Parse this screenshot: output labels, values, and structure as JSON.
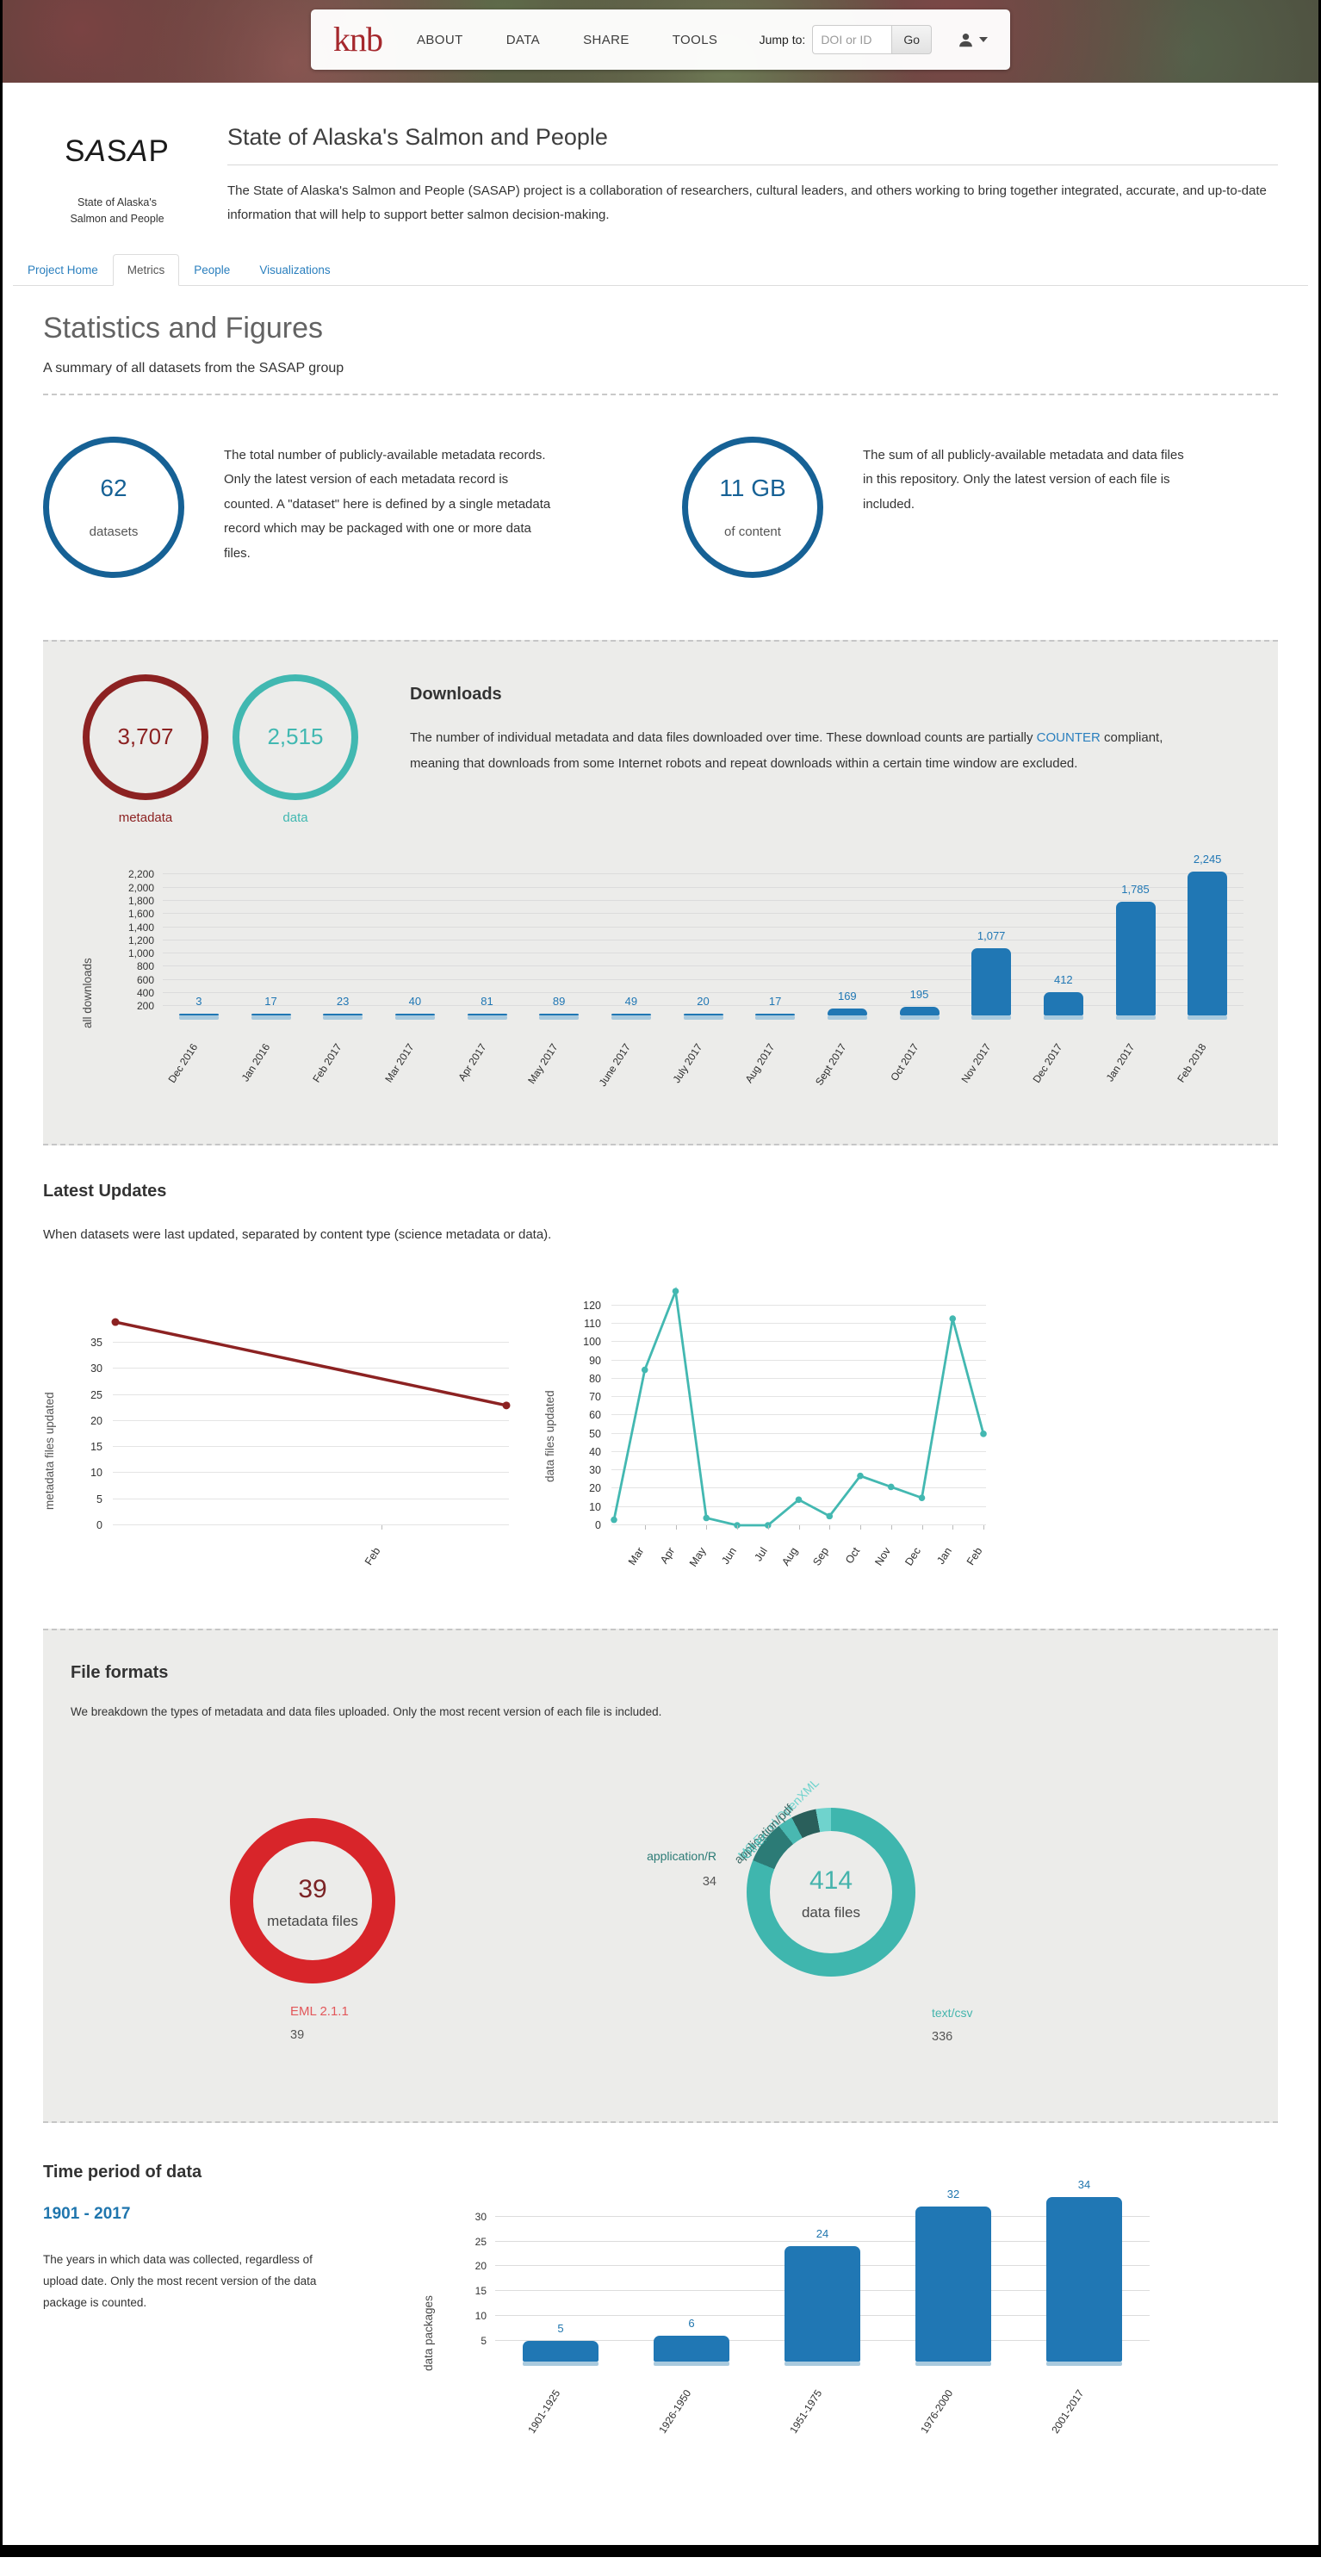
{
  "navbar": {
    "logo": "knb",
    "links": [
      "ABOUT",
      "DATA",
      "SHARE",
      "TOOLS"
    ],
    "jump_label": "Jump to:",
    "jump_placeholder": "DOI or ID",
    "go_label": "Go"
  },
  "header": {
    "logo_text_parts": [
      "S",
      "A",
      "S",
      "A",
      "P"
    ],
    "logo_caption_line1": "State of Alaska's",
    "logo_caption_line2": "Salmon and People",
    "title": "State of Alaska's Salmon and People",
    "description": "The State of Alaska's Salmon and People (SASAP) project is a collaboration of researchers, cultural leaders, and others working to bring together integrated, accurate, and up-to-date information that will help to support better salmon decision-making."
  },
  "tabs": [
    {
      "label": "Project Home",
      "active": false
    },
    {
      "label": "Metrics",
      "active": true
    },
    {
      "label": "People",
      "active": false
    },
    {
      "label": "Visualizations",
      "active": false
    }
  ],
  "stats": {
    "title": "Statistics and Figures",
    "subtitle": "A summary of all datasets from the SASAP group"
  },
  "metrics": {
    "datasets": {
      "value": "62",
      "label": "datasets",
      "description": "The total number of publicly-available metadata records. Only the latest version of each metadata record is counted. A \"dataset\" here is defined by a single metadata record which may be packaged with one or more data files."
    },
    "content": {
      "value": "11 GB",
      "label": "of content",
      "description": "The sum of all publicly-available metadata and data files in this repository. Only the latest version of each file is included."
    }
  },
  "downloads": {
    "heading": "Downloads",
    "desc_before": "The number of individual metadata and data files downloaded over time. These download counts are partially ",
    "link_text": "COUNTER",
    "desc_after": " compliant, meaning that downloads from some Internet robots and repeat downloads within a certain time window are excluded.",
    "metadata_circle": {
      "value": "3,707",
      "label": "metadata"
    },
    "data_circle": {
      "value": "2,515",
      "label": "data"
    }
  },
  "latest_updates": {
    "heading": "Latest Updates",
    "description": "When datasets were last updated, separated by content type (science metadata or data)."
  },
  "file_formats": {
    "heading": "File formats",
    "description": "We breakdown the types of metadata and data files uploaded. Only the most recent version of each file is included."
  },
  "time_period": {
    "heading": "Time period of data",
    "range": "1901 - 2017",
    "description": "The years in which data was collected, regardless of upload date. Only the most recent version of the data package is counted."
  },
  "colors": {
    "primary_blue": "#166195",
    "bar_blue": "#2077b4",
    "bar_base_blue": "#a9cade",
    "maroon": "#8c2222",
    "teal": "#41b8b1",
    "donut_red": "#d8252a",
    "link_blue": "#2a7fbe",
    "brand_red": "#a5282d"
  },
  "chart_data": [
    {
      "id": "downloads",
      "type": "bar",
      "ylabel": "all downloads",
      "categories": [
        "Dec 2016",
        "Jan 2016",
        "Feb 2017",
        "Mar 2017",
        "Apr 2017",
        "May 2017",
        "June 2017",
        "July 2017",
        "Aug 2017",
        "Sept 2017",
        "Oct 2017",
        "Nov 2017",
        "Dec 2017",
        "Jan 2017",
        "Feb 2018"
      ],
      "values": [
        3,
        17,
        23,
        40,
        81,
        89,
        49,
        20,
        17,
        169,
        195,
        1077,
        412,
        1785,
        2245
      ],
      "value_labels": [
        "3",
        "17",
        "23",
        "40",
        "81",
        "89",
        "49",
        "20",
        "17",
        "169",
        "195",
        "1,077",
        "412",
        "1,785",
        "2,245"
      ],
      "yticks": [
        200,
        400,
        600,
        800,
        1000,
        1200,
        1400,
        1600,
        1800,
        2000,
        2200
      ],
      "ymax": 2245,
      "grid": true,
      "bar_color": "#2077b4",
      "base_color": "#a9cade",
      "label_color": "#2077b4"
    },
    {
      "id": "metadata-updates",
      "type": "line",
      "ylabel": "metadata files updated",
      "values": [
        39,
        23
      ],
      "xlabels": [
        {
          "label": "Feb",
          "frac": 0.68
        }
      ],
      "yticks": [
        0,
        5,
        10,
        15,
        20,
        25,
        30,
        35
      ],
      "draw_max": 40,
      "grid": true,
      "color": "#8c2222"
    },
    {
      "id": "data-updates",
      "type": "line",
      "ylabel": "data files updated",
      "values": [
        3,
        85,
        128,
        4,
        0,
        0,
        14,
        5,
        27,
        21,
        15,
        113,
        50
      ],
      "xlabels": [
        "Mar",
        "Apr",
        "May",
        "Jun",
        "Jul",
        "Aug",
        "Sep",
        "Oct",
        "Nov",
        "Dec",
        "Jan",
        "Feb"
      ],
      "yticks": [
        0,
        10,
        20,
        30,
        40,
        50,
        60,
        70,
        80,
        90,
        100,
        110,
        120
      ],
      "draw_max": 130,
      "grid": true,
      "color": "#43b8b1"
    },
    {
      "id": "metadata-formats",
      "type": "pie",
      "center_value": "39",
      "center_label": "metadata files",
      "center_value_color": "#7b2325",
      "slices": [
        {
          "label": "EML 2.1.1",
          "value": 39,
          "color": "#d8252a",
          "label_color": "#e2575a"
        }
      ]
    },
    {
      "id": "data-formats",
      "type": "pie",
      "center_value": "414",
      "center_label": "data files",
      "center_value_color": "#45b3ac",
      "slices": [
        {
          "label": "text/csv",
          "value": 336,
          "color": "#3fb6ae",
          "label_color": "#45b5ad"
        },
        {
          "label": "application/R",
          "value": 34,
          "color": "#2c7b76",
          "label_color": "#2c7b76"
        },
        {
          "label": "Other",
          "value": 12,
          "color": "#49b8b1",
          "label_color": "#49b8b1"
        },
        {
          "label": "application/pdf",
          "value": 20,
          "color": "#2a5f5b",
          "label_color": "#3d6965"
        },
        {
          "label": "MS Excel OpenXML",
          "value": 12,
          "color": "#6fd3cd",
          "label_color": "#6fd3cd"
        }
      ]
    },
    {
      "id": "time-period",
      "type": "bar",
      "ylabel": "data packages",
      "categories": [
        "1901-1925",
        "1926-1950",
        "1951-1975",
        "1976-2000",
        "2001-2017"
      ],
      "values": [
        5,
        6,
        24,
        32,
        34
      ],
      "value_labels": [
        "5",
        "6",
        "24",
        "32",
        "34"
      ],
      "yticks": [
        5,
        10,
        15,
        20,
        25,
        30
      ],
      "ymax": 34,
      "grid": true,
      "bar_color": "#2077b4",
      "base_color": "#a9cade",
      "label_color": "#2076ae"
    }
  ]
}
